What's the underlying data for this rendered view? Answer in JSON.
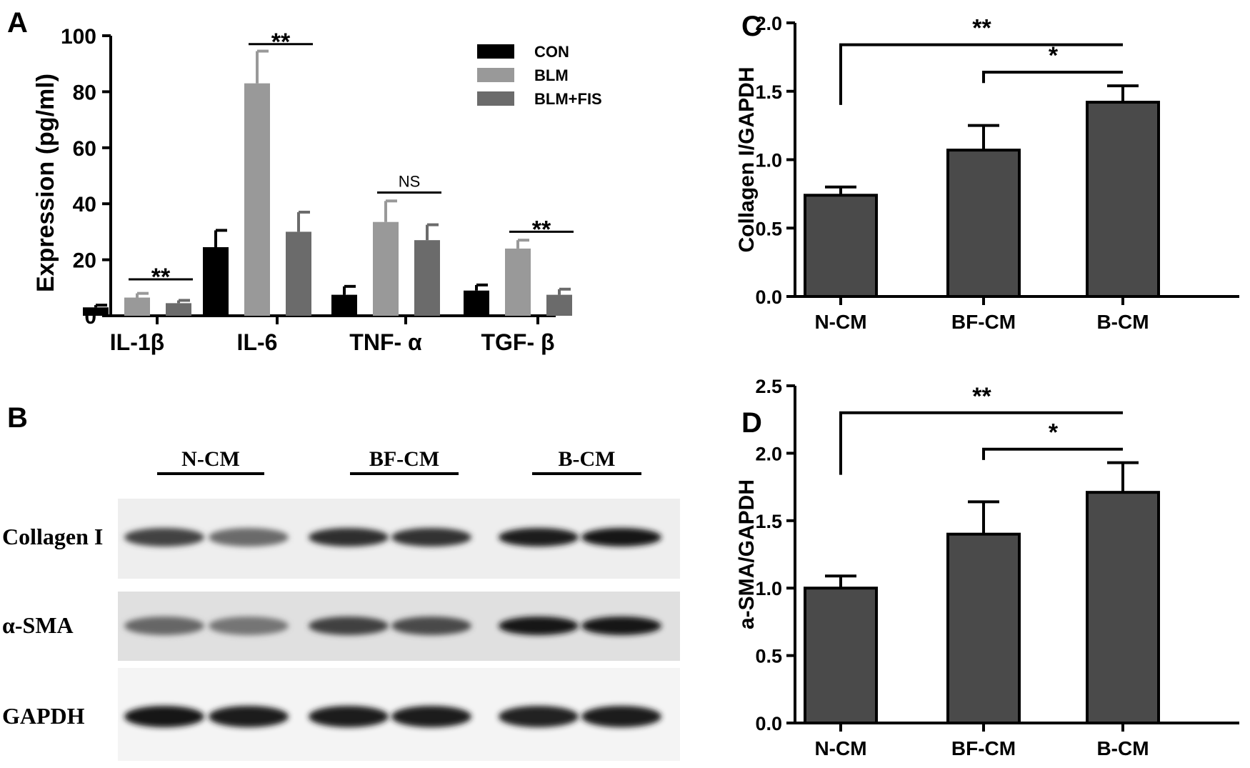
{
  "panels": {
    "A": {
      "label": "A"
    },
    "B": {
      "label": "B"
    },
    "C": {
      "label": "C"
    },
    "D": {
      "label": "D"
    }
  },
  "colors": {
    "CON": "#000000",
    "BLM": "#999999",
    "BLM+FIS": "#6b6b6b",
    "bar_cd": "#4a4a4a"
  },
  "chart_data": [
    {
      "panel": "A",
      "type": "bar",
      "ylabel": "Expression (pg/ml)",
      "xlabel": "",
      "ylim": [
        0,
        100
      ],
      "yticks": [
        0,
        20,
        40,
        60,
        80,
        100
      ],
      "legend": "top-right",
      "categories": [
        "IL-1β",
        "IL-6",
        "TNF- α",
        "TGF- β"
      ],
      "series": [
        {
          "name": "CON",
          "values": [
            3,
            24.5,
            7.5,
            9
          ],
          "errors": [
            0.8,
            6,
            3,
            2
          ]
        },
        {
          "name": "BLM",
          "values": [
            6.5,
            83,
            33.5,
            24
          ],
          "errors": [
            1.5,
            11.5,
            7.5,
            3
          ]
        },
        {
          "name": "BLM+FIS",
          "values": [
            4.5,
            30,
            27,
            7.5
          ],
          "errors": [
            1,
            7,
            5.5,
            2
          ]
        }
      ],
      "annotations": [
        {
          "text": "**",
          "category": 0,
          "from_series": 1,
          "to_series": 2,
          "y": 13
        },
        {
          "text": "**",
          "category": 1,
          "from_series": 1,
          "to_series": 2,
          "y": 97
        },
        {
          "text": "NS",
          "category": 2,
          "from_series": 1,
          "to_series": 2,
          "y": 44
        },
        {
          "text": "**",
          "category": 3,
          "from_series": 1,
          "to_series": 2,
          "y": 30
        }
      ]
    },
    {
      "panel": "C",
      "type": "bar",
      "ylabel": "Collagen I/GAPDH",
      "xlabel": "",
      "ylim": [
        0,
        2.0
      ],
      "yticks": [
        "0.0",
        "0.5",
        "1.0",
        "1.5",
        "2.0"
      ],
      "categories": [
        "N-CM",
        "BF-CM",
        "B-CM"
      ],
      "values": [
        0.74,
        1.07,
        1.42
      ],
      "errors": [
        0.06,
        0.18,
        0.12
      ],
      "annotations": [
        {
          "text": "**",
          "from": 0,
          "to": 2,
          "y": 1.84,
          "drop_to": 1.45
        },
        {
          "text": "*",
          "from": 1,
          "to": 2,
          "y": 1.64,
          "drop_to": 1.56
        }
      ]
    },
    {
      "panel": "D",
      "type": "bar",
      "ylabel": "a-SMA/GAPDH",
      "xlabel": "",
      "ylim": [
        0,
        2.5
      ],
      "yticks": [
        "0.0",
        "0.5",
        "1.0",
        "1.5",
        "2.0",
        "2.5"
      ],
      "categories": [
        "N-CM",
        "BF-CM",
        "B-CM"
      ],
      "values": [
        1.0,
        1.4,
        1.71
      ],
      "errors": [
        0.09,
        0.24,
        0.22
      ],
      "annotations": [
        {
          "text": "**",
          "from": 0,
          "to": 2,
          "y": 2.3,
          "drop_to": 1.82
        },
        {
          "text": "*",
          "from": 1,
          "to": 2,
          "y": 2.03,
          "drop_to": 1.95
        }
      ]
    }
  ],
  "blot": {
    "groups": [
      "N-CM",
      "BF-CM",
      "B-CM"
    ],
    "rows": [
      {
        "label": "Collagen I",
        "intensity": [
          0.78,
          0.6,
          0.88,
          0.86,
          0.97,
          0.98
        ]
      },
      {
        "label": "α-SMA",
        "intensity": [
          0.62,
          0.55,
          0.8,
          0.76,
          1.0,
          1.0
        ]
      },
      {
        "label": "GAPDH",
        "intensity": [
          0.98,
          0.96,
          0.95,
          0.96,
          0.93,
          0.95
        ]
      }
    ]
  }
}
